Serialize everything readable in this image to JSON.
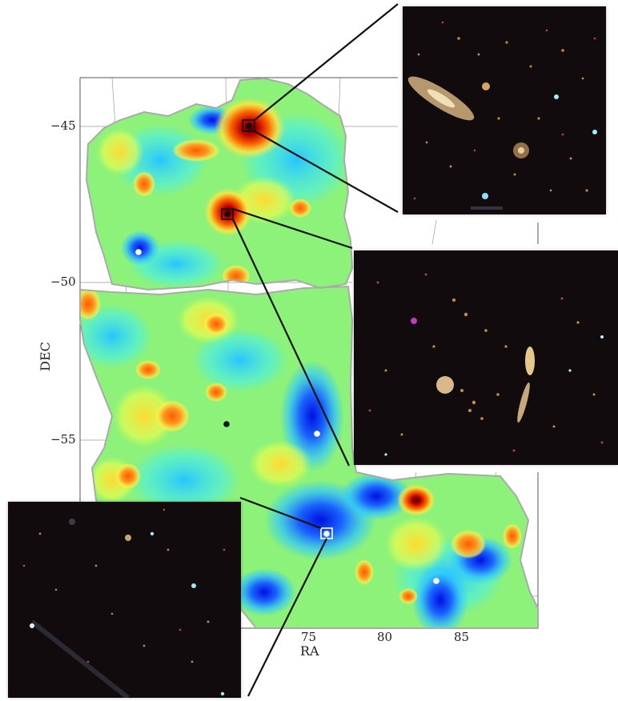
{
  "axes": {
    "xlabel": "RA",
    "ylabel": "DEC",
    "x_ticks": [
      "75",
      "80",
      "85"
    ],
    "y_ticks": [
      "−45",
      "−50",
      "−55"
    ]
  },
  "map": {
    "colormap": [
      "#0000ff",
      "#00ccff",
      "#66ff66",
      "#ffff33",
      "#ff6600",
      "#cc0000",
      "#330000"
    ],
    "markers": {
      "white_dots": 4,
      "black_dots": 3,
      "boxes": 3
    }
  },
  "insets": [
    {
      "name": "inset-top-right"
    },
    {
      "name": "inset-middle-right"
    },
    {
      "name": "inset-bottom-left"
    }
  ]
}
